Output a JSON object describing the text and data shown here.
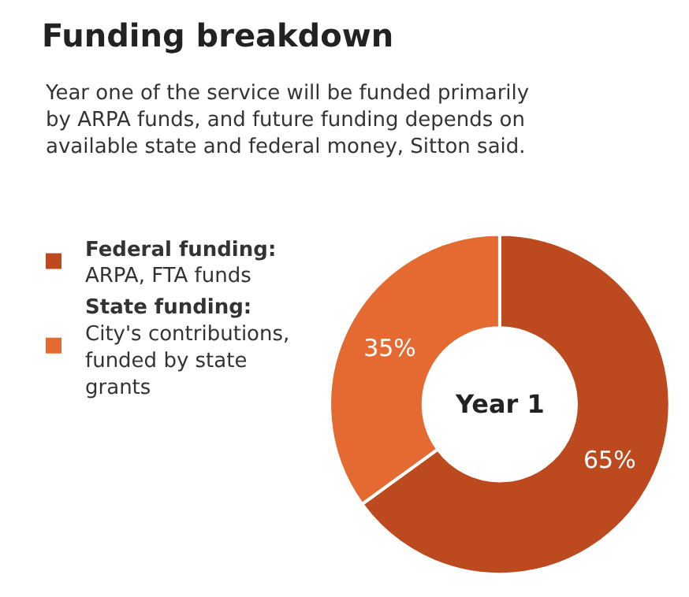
{
  "chart_data": {
    "type": "donut",
    "title": "Funding breakdown",
    "subtitle": "Year one of the service will be funded primarily by ARPA funds, and future funding depends on available state and federal money, Sitton said.",
    "categories": [
      "Federal funding:\nARPA, FTA funds",
      "State funding:\nCity's contributions, funded by state grants"
    ],
    "values": [
      65,
      35
    ],
    "value_labels": [
      "65%",
      "35%"
    ],
    "colors": [
      "#bd4a1f",
      "#e56a31"
    ],
    "annotations": [
      "Year 1"
    ],
    "legend": "left"
  }
}
